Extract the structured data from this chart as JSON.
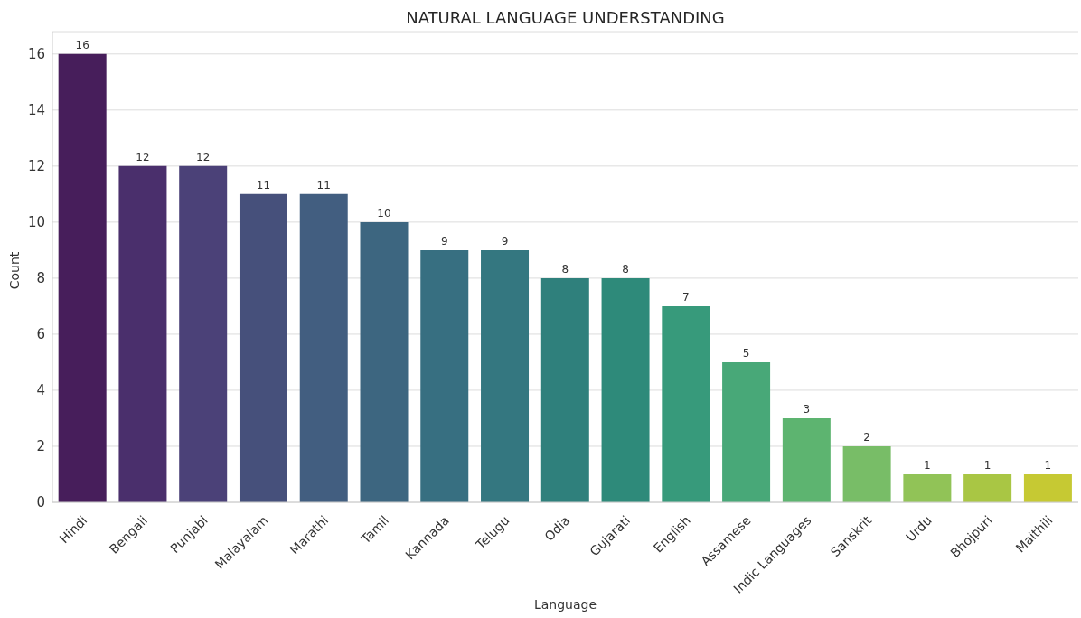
{
  "chart_data": {
    "type": "bar",
    "title": "NATURAL LANGUAGE UNDERSTANDING",
    "xlabel": "Language",
    "ylabel": "Count",
    "categories": [
      "Hindi",
      "Bengali",
      "Punjabi",
      "Malayalam",
      "Marathi",
      "Tamil",
      "Kannada",
      "Telugu",
      "Odia",
      "Gujarati",
      "English",
      "Assamese",
      "Indic Languages",
      "Sanskrit",
      "Urdu",
      "Bhojpuri",
      "Maithili"
    ],
    "values": [
      16,
      12,
      12,
      11,
      11,
      10,
      9,
      9,
      8,
      8,
      7,
      5,
      3,
      2,
      1,
      1,
      1
    ],
    "colors": [
      "#471e5b",
      "#4a2f6c",
      "#4b4178",
      "#46507b",
      "#425e80",
      "#3d6680",
      "#376f81",
      "#347780",
      "#2f807c",
      "#2e8a7a",
      "#379a7b",
      "#48a878",
      "#5db470",
      "#78bd67",
      "#91c357",
      "#a9c644",
      "#c6c933"
    ],
    "ylim": [
      0,
      16.8
    ],
    "yticks": [
      0,
      2,
      4,
      6,
      8,
      10,
      12,
      14,
      16
    ],
    "grid": "y",
    "data_labels": true
  }
}
